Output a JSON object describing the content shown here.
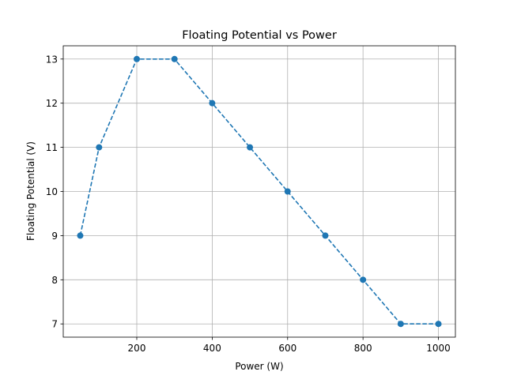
{
  "chart_data": {
    "type": "line",
    "title": "Floating Potential vs Power",
    "xlabel": "Power (W)",
    "ylabel": "Floating Potential (V)",
    "x": [
      50,
      100,
      200,
      300,
      400,
      500,
      600,
      700,
      800,
      900,
      1000
    ],
    "series": [
      {
        "values": [
          9,
          11,
          13,
          13,
          12,
          11,
          10,
          9,
          8,
          7,
          7
        ],
        "line_style": "dashed",
        "marker": "circle",
        "color": "#1f77b4"
      }
    ],
    "xlim": [
      5,
      1045
    ],
    "ylim": [
      6.7,
      13.3
    ],
    "xticks": [
      200,
      400,
      600,
      800,
      1000
    ],
    "yticks": [
      7,
      8,
      9,
      10,
      11,
      12,
      13
    ],
    "grid": true,
    "colors": {
      "series": "#1f77b4",
      "grid": "#b0b0b0",
      "axis": "#000000"
    }
  }
}
